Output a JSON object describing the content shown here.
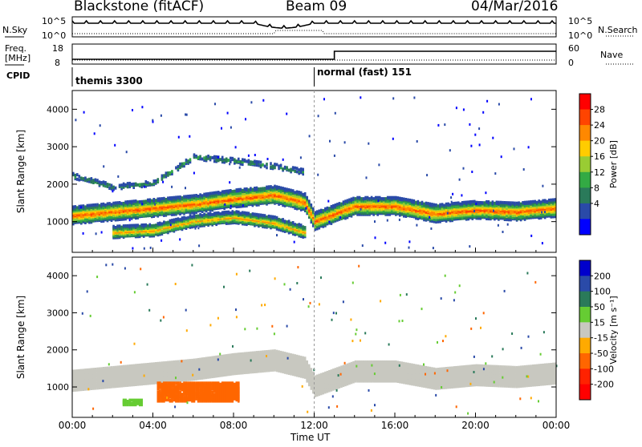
{
  "header": {
    "station": "Blackstone (fitACF)",
    "beam": "Beam 09",
    "date": "04/Mar/2016"
  },
  "status_panel": {
    "left_top_label": "N.Sky",
    "right_top_label": "N.Search",
    "left_mid_label_1": "Freq.",
    "left_mid_label_2": "[MHz]",
    "right_mid_label": "Nave",
    "cpid_label": "CPID",
    "noise_ticks": [
      "10^5",
      "10^0"
    ],
    "freq_ticks": [
      "18",
      "8"
    ],
    "nave_ticks": [
      "60",
      "0"
    ],
    "modes": [
      {
        "name": "themis 3300",
        "start_hour": 0
      },
      {
        "name": "normal (fast) 151",
        "start_hour": 12
      }
    ]
  },
  "x_axis": {
    "label": "Time UT",
    "ticks": [
      "00:00",
      "04:00",
      "08:00",
      "12:00",
      "16:00",
      "20:00",
      "00:00"
    ],
    "range_hours": [
      0,
      24
    ]
  },
  "chart_data": [
    {
      "type": "heatmap",
      "name": "power",
      "ylabel": "Slant Range [km]",
      "yticks": [
        1000,
        2000,
        3000,
        4000
      ],
      "ylim": [
        180,
        4500
      ],
      "xlim": [
        0,
        24
      ],
      "colorbar": {
        "label": "Power [dB]",
        "ticks": [
          "28",
          "24",
          "20",
          "16",
          "12",
          "8",
          "4"
        ],
        "colors": [
          "#ff0000",
          "#ff4400",
          "#ff8800",
          "#ffcc00",
          "#99cc33",
          "#33aa44",
          "#2a7a5a",
          "#2a4aa8",
          "#0000ff"
        ]
      },
      "bands": [
        {
          "label": "main echo band",
          "hours": [
            0,
            2,
            4,
            6,
            8,
            10,
            11.5,
            12,
            14,
            16,
            18,
            20,
            22,
            24
          ],
          "range_km": [
            1150,
            1250,
            1350,
            1450,
            1600,
            1700,
            1500,
            1000,
            1400,
            1400,
            1200,
            1300,
            1250,
            1350
          ],
          "peak_db": 26
        },
        {
          "label": "lower echo band",
          "hours": [
            2,
            4,
            6,
            8,
            10,
            11.5
          ],
          "range_km": [
            700,
            750,
            1000,
            1100,
            950,
            700
          ],
          "peak_db": 22
        },
        {
          "label": "upper echo band",
          "hours": [
            0,
            2,
            4,
            6,
            8,
            10,
            11.5
          ],
          "range_km": [
            2200,
            1900,
            2000,
            2700,
            2600,
            2450,
            2300
          ],
          "peak_db": 10
        }
      ]
    },
    {
      "type": "heatmap",
      "name": "velocity",
      "ylabel": "Slant Range [km]",
      "yticks": [
        1000,
        2000,
        3000,
        4000
      ],
      "ylim": [
        180,
        4500
      ],
      "xlim": [
        0,
        24
      ],
      "colorbar": {
        "label": "Velocity [m s⁻¹]",
        "ticks": [
          "200",
          "100",
          "50",
          "15",
          "-15",
          "-50",
          "-100",
          "-200"
        ],
        "colors": [
          "#0000cc",
          "#2a4aa8",
          "#2a7a5a",
          "#66cc33",
          "#c8c8c0",
          "#ffaa00",
          "#ff6600",
          "#ff2200",
          "#ff0000"
        ]
      },
      "regions": [
        {
          "label": "ground scatter",
          "hours": [
            0,
            24
          ],
          "range_km": [
            1000,
            1750
          ],
          "velocity_ms": 0
        },
        {
          "label": "negative velocity patch",
          "hours": [
            4.2,
            8.2
          ],
          "range_km": [
            600,
            1100
          ],
          "velocity_ms": -60
        },
        {
          "label": "positive velocity patch",
          "hours": [
            2.5,
            3.5
          ],
          "range_km": [
            500,
            650
          ],
          "velocity_ms": 30
        }
      ]
    }
  ]
}
